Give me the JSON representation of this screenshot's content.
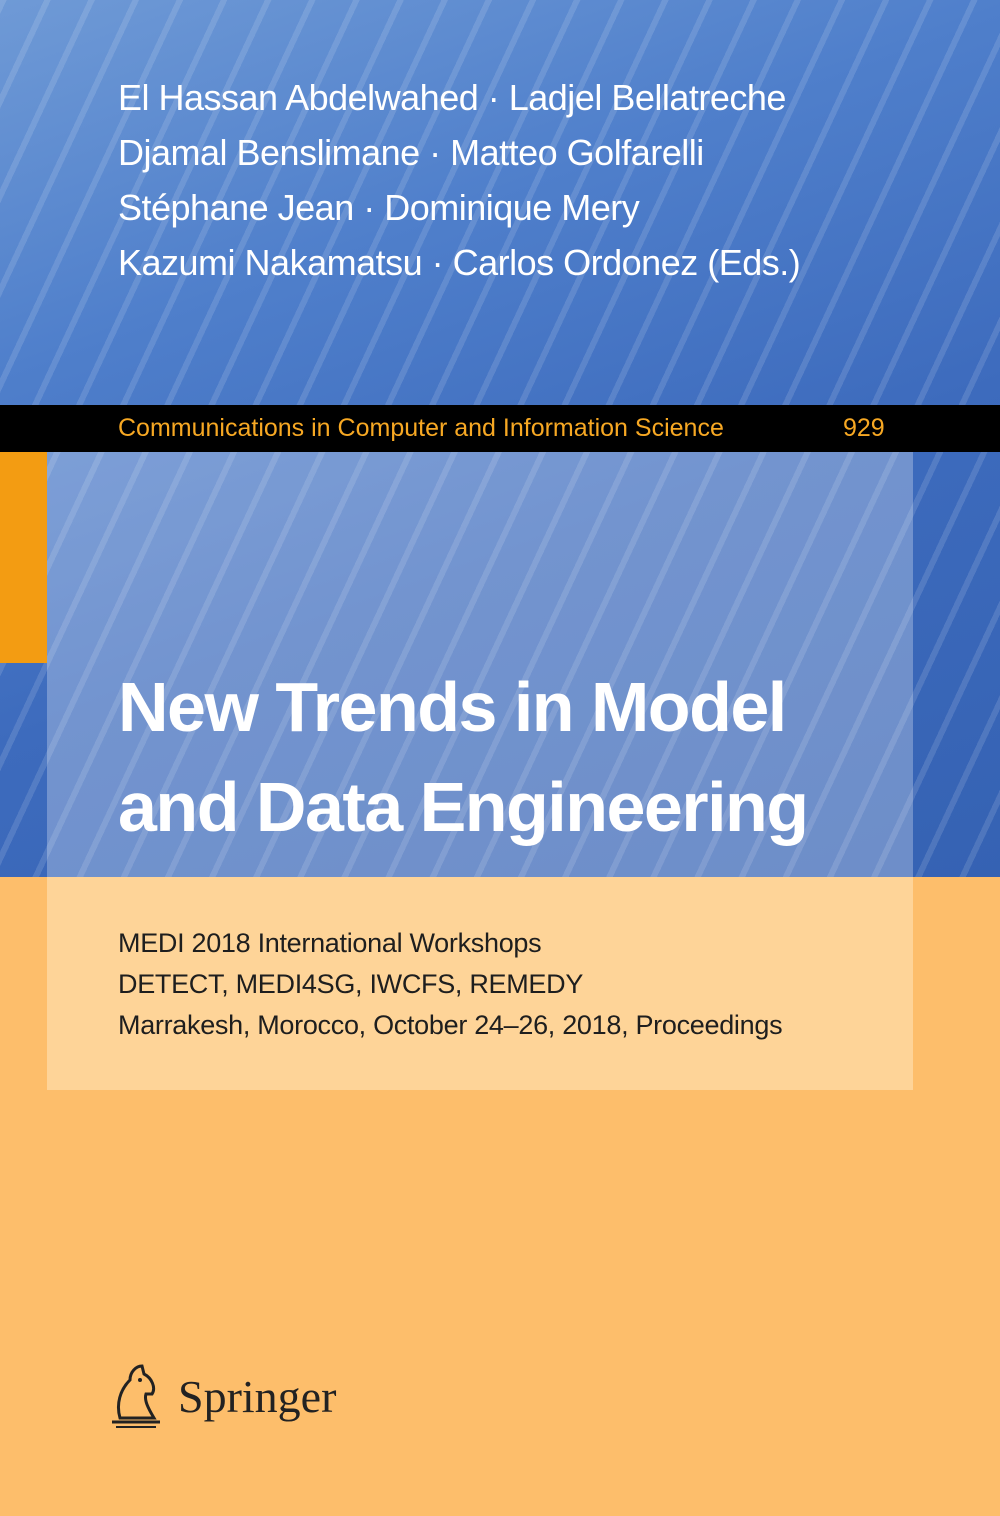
{
  "editors": [
    "El Hassan Abdelwahed · Ladjel Bellatreche",
    "Djamal Benslimane · Matteo Golfarelli",
    "Stéphane Jean · Dominique Mery",
    "Kazumi Nakamatsu · Carlos Ordonez (Eds.)"
  ],
  "series": {
    "name": "Communications in Computer and Information Science",
    "volume": "929"
  },
  "title": [
    "New Trends in Model",
    "and Data Engineering"
  ],
  "subtitle": [
    "MEDI 2018 International Workshops",
    "DETECT, MEDI4SG, IWCFS, REMEDY",
    "Marrakesh, Morocco, October 24–26, 2018, Proceedings"
  ],
  "publisher": "Springer"
}
